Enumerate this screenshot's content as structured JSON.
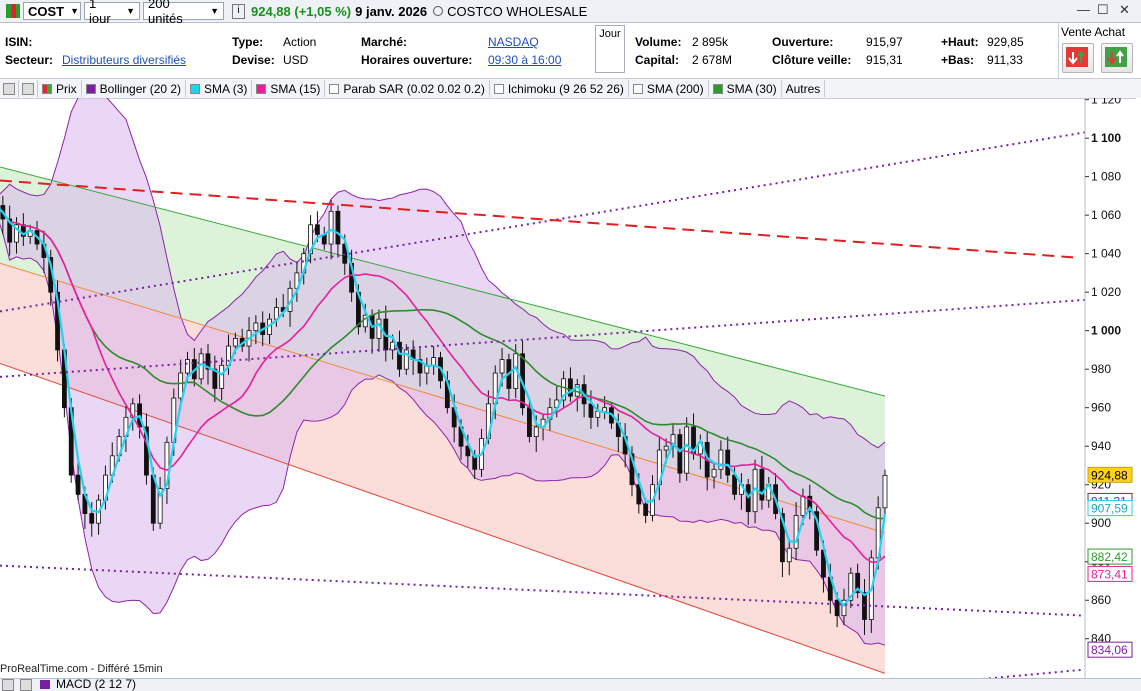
{
  "topbar": {
    "symbol": "COST",
    "period": "1 jour",
    "units": "200 unités",
    "price": "924,88 (+1,05 %)",
    "date": "9 janv. 2026",
    "name": "COSTCO WHOLESALE",
    "win_min": "—",
    "win_max": "☐",
    "win_close": "✕"
  },
  "info": {
    "isin_label": "ISIN:",
    "secteur_label": "Secteur:",
    "secteur_value": "Distributeurs diversifiés",
    "type_label": "Type:",
    "type_value": "Action",
    "devise_label": "Devise:",
    "devise_value": "USD",
    "marche_label": "Marché:",
    "marche_value": "NASDAQ",
    "horaires_label": "Horaires ouverture:",
    "horaires_value": "09:30 à 16:00",
    "jour": "Jour",
    "volume_label": "Volume:",
    "volume_value": "2 895k",
    "capital_label": "Capital:",
    "capital_value": "2 678M",
    "ouverture_label": "Ouverture:",
    "ouverture_value": "915,97",
    "cloture_label": "Clôture veille:",
    "cloture_value": "915,31",
    "haut_label": "+Haut:",
    "haut_value": "929,85",
    "bas_label": "+Bas:",
    "bas_value": "911,33",
    "vente_achat": "Vente Achat"
  },
  "indicators": [
    {
      "label": "Prix",
      "color": "#3a9a3a"
    },
    {
      "label": "Bollinger (20 2)",
      "color": "#7b1fa2"
    },
    {
      "label": "SMA (3)",
      "color": "#22d3ee"
    },
    {
      "label": "SMA (15)",
      "color": "#e91e9c"
    },
    {
      "label": "Parab SAR (0.02 0.02 0.2)",
      "color": "#ffffff"
    },
    {
      "label": "Ichimoku (9 26 52 26)",
      "color": "#ffffff"
    },
    {
      "label": "SMA (200)",
      "color": "#ffffff"
    },
    {
      "label": "SMA (30)",
      "color": "#2e9a2e"
    },
    {
      "label": "Autres",
      "color": ""
    }
  ],
  "chart_data": {
    "type": "line",
    "y_ticks": [
      "1 120",
      "1 100",
      "1 080",
      "1 060",
      "1 040",
      "1 020",
      "1 000",
      "980",
      "960",
      "940",
      "920",
      "900",
      "880",
      "860",
      "840"
    ],
    "ylim": [
      830,
      1125
    ],
    "price_labels": [
      {
        "text": "924,88",
        "value": 924.88,
        "bg": "#ffd21f",
        "fg": "#000000",
        "border": "#c9a000"
      },
      {
        "text": "911,31",
        "value": 911.31,
        "bg": "#ffffff",
        "fg": "#7b1fa2",
        "border": "#7b1fa2"
      },
      {
        "text": "907,59",
        "value": 907.59,
        "bg": "#ffffff",
        "fg": "#1aa6c4",
        "border": "#22d3ee"
      },
      {
        "text": "882,42",
        "value": 882.42,
        "bg": "#ffffff",
        "fg": "#2e9a2e",
        "border": "#2e9a2e"
      },
      {
        "text": "873,41",
        "value": 873.41,
        "bg": "#ffffff",
        "fg": "#e91e9c",
        "border": "#e91e9c"
      },
      {
        "text": "834,06",
        "value": 834.06,
        "bg": "#ffffff",
        "fg": "#7b1fa2",
        "border": "#7b1fa2"
      }
    ],
    "closes": [
      1065,
      1058,
      1046,
      1055,
      1049,
      1052,
      1045,
      1038,
      1020,
      990,
      960,
      925,
      915,
      905,
      900,
      912,
      925,
      935,
      945,
      955,
      962,
      950,
      925,
      900,
      918,
      942,
      965,
      978,
      985,
      975,
      988,
      980,
      970,
      982,
      992,
      996,
      992,
      1000,
      1004,
      998,
      1006,
      1012,
      1010,
      1022,
      1030,
      1040,
      1055,
      1050,
      1045,
      1062,
      1045,
      1035,
      1020,
      1002,
      1008,
      996,
      1006,
      990,
      994,
      980,
      990,
      985,
      978,
      982,
      986,
      974,
      960,
      950,
      940,
      935,
      928,
      944,
      962,
      978,
      985,
      970,
      988,
      960,
      945,
      950,
      954,
      960,
      964,
      975,
      966,
      972,
      962,
      955,
      958,
      960,
      952,
      945,
      936,
      920,
      910,
      904,
      920,
      938,
      940,
      946,
      926,
      950,
      936,
      942,
      924,
      928,
      938,
      925,
      915,
      920,
      906,
      928,
      912,
      920,
      905,
      880,
      887,
      904,
      914,
      906,
      886,
      872,
      860,
      852,
      860,
      874,
      864,
      850,
      882,
      908,
      924.88
    ],
    "colors": {
      "up": "#ffffff",
      "down": "#111111",
      "sma3": "#22d3ee",
      "sma15": "#e91e9c",
      "sma30": "#2e8b2e",
      "bollinger_line": "#8e24aa",
      "bollinger_fill": "#d9b7ec",
      "channel_top": "#3aa83a",
      "channel_bottom": "#e0483a",
      "channel_top_fill": "#d9f2d5",
      "channel_bottom_fill": "#fbd9d6",
      "dashed_red": "#e02020",
      "dotted_purple": "#7b1fa2"
    }
  },
  "footer": {
    "source": "ProRealTime.com - Différé 15min",
    "macd": "MACD (2 12 7)"
  }
}
